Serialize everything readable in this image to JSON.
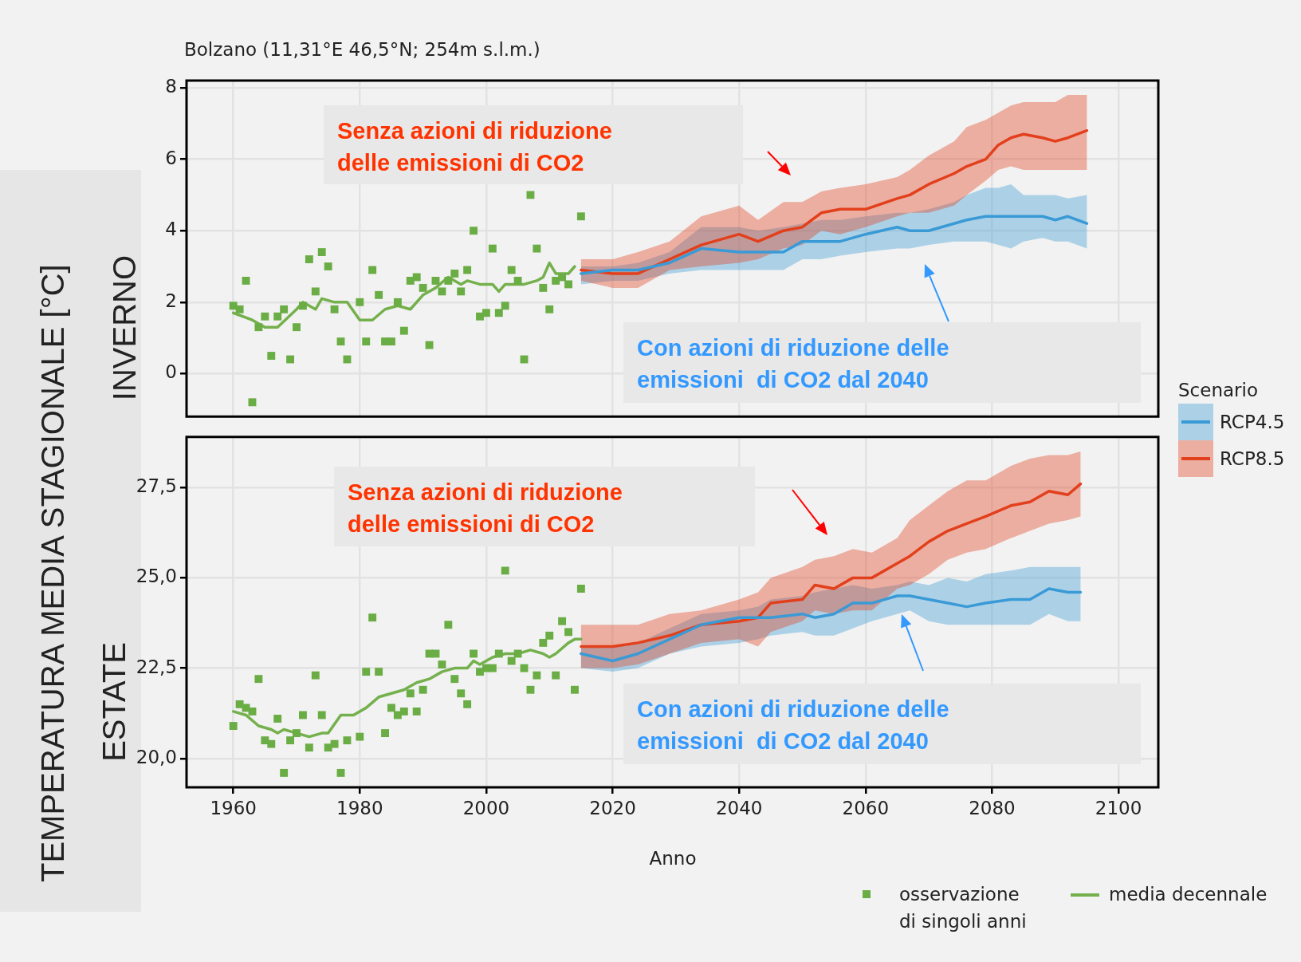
{
  "chart_data": [
    {
      "type": "line",
      "title": "Bolzano (11,31°E 46,5°N; 254m s.l.m.)",
      "subtitle": "INVERNO",
      "ylabel": "TEMPERATURA MEDIA STAGIONALE [°C]",
      "legend_title": "Scenario",
      "legend": "right",
      "grid": true,
      "tick_labels": "y",
      "xlim": [
        1952.6,
        2106.3
      ],
      "xticks": [
        1960,
        1980,
        2000,
        2020,
        2040,
        2060,
        2080,
        2100
      ],
      "ylim": [
        -1.2,
        8.2
      ],
      "yticks": [
        0,
        2,
        4,
        6,
        8
      ],
      "annotations": [
        "Senza azioni di riduzione\ndelle emissioni di CO2",
        "Con azioni di riduzione delle\nemissioni  di CO2 dal 2040"
      ],
      "series": [
        {
          "type": "scatter",
          "marker": "square",
          "color": "#6aad45",
          "x": [
            1960,
            1961,
            1962,
            1963,
            1964,
            1965,
            1966,
            1967,
            1968,
            1969,
            1970,
            1971,
            1972,
            1973,
            1974,
            1975,
            1976,
            1977,
            1978,
            1980,
            1981,
            1982,
            1983,
            1984,
            1985,
            1986,
            1987,
            1988,
            1989,
            1990,
            1991,
            1992,
            1993,
            1994,
            1995,
            1996,
            1997,
            1998,
            1999,
            2000,
            2001,
            2002,
            2003,
            2004,
            2005,
            2006,
            2007,
            2008,
            2009,
            2010,
            2011,
            2012,
            2013,
            2015
          ],
          "values": [
            1.9,
            1.8,
            2.6,
            -0.8,
            1.3,
            1.6,
            0.5,
            1.6,
            1.8,
            0.4,
            1.3,
            1.9,
            3.2,
            2.3,
            3.4,
            3.0,
            1.8,
            0.9,
            0.4,
            2.0,
            0.9,
            2.9,
            2.2,
            0.9,
            0.9,
            2.0,
            1.2,
            2.6,
            2.7,
            2.4,
            0.8,
            2.6,
            2.3,
            2.6,
            2.8,
            2.3,
            2.9,
            4.0,
            1.6,
            1.7,
            3.5,
            1.7,
            1.9,
            2.9,
            2.6,
            0.4,
            5.0,
            3.5,
            2.4,
            1.8,
            2.6,
            2.7,
            2.5,
            4.4
          ]
        },
        {
          "type": "line",
          "color": "#74b04c",
          "x": [
            1960,
            1963,
            1965,
            1967,
            1970,
            1971,
            1973,
            1974,
            1976,
            1978,
            1980,
            1982,
            1984,
            1986,
            1988,
            1990,
            1992,
            1994,
            1996,
            1997,
            1999,
            2001,
            2002,
            2003,
            2005,
            2006,
            2008,
            2009,
            2010,
            2011,
            2013,
            2014
          ],
          "values": [
            1.7,
            1.5,
            1.3,
            1.3,
            1.8,
            2.0,
            1.8,
            2.1,
            2.0,
            2.0,
            1.5,
            1.5,
            1.8,
            1.9,
            1.8,
            2.2,
            2.4,
            2.7,
            2.5,
            2.6,
            2.5,
            2.5,
            2.3,
            2.5,
            2.5,
            2.5,
            2.6,
            2.7,
            3.1,
            2.8,
            2.8,
            3.0
          ]
        },
        {
          "type": "line",
          "name": "RCP4.5",
          "color": "#3a9ad6",
          "x": [
            2015,
            2020,
            2024,
            2029,
            2034,
            2040,
            2043,
            2047,
            2050,
            2053,
            2056,
            2060,
            2065,
            2067,
            2070,
            2074,
            2076,
            2079,
            2081,
            2083,
            2085,
            2088,
            2090,
            2092,
            2095
          ],
          "values": [
            2.8,
            2.9,
            2.9,
            3.1,
            3.5,
            3.4,
            3.4,
            3.4,
            3.7,
            3.7,
            3.7,
            3.9,
            4.1,
            4.0,
            4.0,
            4.2,
            4.3,
            4.4,
            4.4,
            4.4,
            4.4,
            4.4,
            4.3,
            4.4,
            4.2
          ],
          "upper": [
            3.0,
            3.0,
            3.1,
            3.4,
            4.1,
            4.1,
            4.0,
            4.1,
            4.2,
            4.3,
            4.3,
            4.4,
            4.5,
            4.5,
            4.6,
            4.8,
            5.0,
            5.2,
            5.2,
            5.3,
            5.0,
            5.0,
            5.0,
            4.9,
            5.0
          ],
          "lower": [
            2.5,
            2.6,
            2.6,
            2.8,
            2.9,
            2.9,
            2.9,
            2.9,
            3.2,
            3.2,
            3.3,
            3.4,
            3.5,
            3.5,
            3.6,
            3.7,
            3.7,
            3.7,
            3.6,
            3.5,
            3.7,
            3.8,
            3.7,
            3.7,
            3.5
          ]
        },
        {
          "type": "line",
          "name": "RCP8.5",
          "color": "#e2401c",
          "x": [
            2015,
            2020,
            2024,
            2029,
            2034,
            2040,
            2043,
            2047,
            2050,
            2053,
            2056,
            2060,
            2065,
            2067,
            2070,
            2074,
            2076,
            2079,
            2081,
            2083,
            2085,
            2088,
            2090,
            2092,
            2095
          ],
          "values": [
            2.9,
            2.8,
            2.8,
            3.2,
            3.6,
            3.9,
            3.7,
            4.0,
            4.1,
            4.5,
            4.6,
            4.6,
            4.9,
            5.0,
            5.3,
            5.6,
            5.8,
            6.0,
            6.4,
            6.6,
            6.7,
            6.6,
            6.5,
            6.6,
            6.8
          ],
          "upper": [
            3.2,
            3.2,
            3.4,
            3.7,
            4.4,
            4.7,
            4.3,
            4.8,
            4.8,
            5.1,
            5.2,
            5.3,
            5.5,
            5.7,
            6.1,
            6.5,
            6.9,
            7.1,
            7.3,
            7.5,
            7.6,
            7.6,
            7.6,
            7.8,
            7.8
          ],
          "lower": [
            2.6,
            2.4,
            2.4,
            2.9,
            3.0,
            3.1,
            3.2,
            3.5,
            3.6,
            4.0,
            3.9,
            4.1,
            4.4,
            4.5,
            4.5,
            4.7,
            5.0,
            5.4,
            5.7,
            5.8,
            5.7,
            5.7,
            5.7,
            5.7,
            5.7
          ]
        }
      ]
    },
    {
      "type": "line",
      "subtitle": "ESTATE",
      "xlabel": "Anno",
      "legend": "bottom",
      "grid": true,
      "xlim": [
        1952.6,
        2106.3
      ],
      "xticks": [
        1960,
        1980,
        2000,
        2020,
        2040,
        2060,
        2080,
        2100
      ],
      "ylim": [
        19.2,
        28.9
      ],
      "yticks": [
        {
          "value": 20,
          "label": "20,0"
        },
        {
          "value": 22.5,
          "label": "22,5"
        },
        {
          "value": 25,
          "label": "25,0"
        },
        {
          "value": 27.5,
          "label": "27,5"
        }
      ],
      "annotations": [
        "Senza azioni di riduzione\ndelle emissioni di CO2",
        "Con azioni di riduzione delle\nemissioni  di CO2 dal 2040"
      ],
      "series": [
        {
          "type": "scatter",
          "name": "osservazione di singoli anni",
          "marker": "square",
          "color": "#6aad45",
          "x": [
            1960,
            1961,
            1962,
            1963,
            1964,
            1965,
            1966,
            1967,
            1968,
            1969,
            1970,
            1971,
            1972,
            1973,
            1974,
            1975,
            1976,
            1977,
            1978,
            1980,
            1981,
            1982,
            1983,
            1984,
            1985,
            1986,
            1987,
            1988,
            1989,
            1990,
            1991,
            1992,
            1993,
            1994,
            1995,
            1996,
            1997,
            1998,
            1999,
            2000,
            2001,
            2002,
            2003,
            2004,
            2005,
            2006,
            2007,
            2008,
            2009,
            2010,
            2011,
            2012,
            2013,
            2014,
            2015
          ],
          "values": [
            20.9,
            21.5,
            21.4,
            21.3,
            22.2,
            20.5,
            20.4,
            21.1,
            19.6,
            20.5,
            20.7,
            21.2,
            20.3,
            22.3,
            21.2,
            20.3,
            20.4,
            19.6,
            20.5,
            20.6,
            22.4,
            23.9,
            22.4,
            20.7,
            21.4,
            21.2,
            21.3,
            21.8,
            21.3,
            21.9,
            22.9,
            22.9,
            22.6,
            23.7,
            22.2,
            21.8,
            21.5,
            22.9,
            22.4,
            22.5,
            22.5,
            22.9,
            25.2,
            22.7,
            22.9,
            22.5,
            21.9,
            22.3,
            23.2,
            23.4,
            22.3,
            23.8,
            23.5,
            21.9,
            24.7
          ]
        },
        {
          "type": "line",
          "name": "media decennale",
          "color": "#74b04c",
          "x": [
            1960,
            1962,
            1964,
            1966,
            1967,
            1968,
            1970,
            1972,
            1974,
            1975,
            1977,
            1979,
            1981,
            1983,
            1985,
            1987,
            1989,
            1991,
            1993,
            1995,
            1997,
            1998,
            1999,
            2001,
            2003,
            2005,
            2007,
            2009,
            2010,
            2011,
            2013,
            2014,
            2015
          ],
          "values": [
            21.3,
            21.2,
            20.9,
            20.8,
            20.7,
            20.8,
            20.7,
            20.6,
            20.7,
            20.7,
            21.2,
            21.2,
            21.4,
            21.7,
            21.8,
            21.9,
            22.1,
            22.2,
            22.4,
            22.5,
            22.5,
            22.7,
            22.6,
            22.8,
            22.9,
            22.9,
            23.0,
            22.9,
            22.8,
            22.9,
            23.2,
            23.3,
            23.3
          ]
        },
        {
          "type": "line",
          "color": "#3a9ad6",
          "x": [
            2015,
            2020,
            2024,
            2029,
            2034,
            2040,
            2043,
            2045,
            2050,
            2052,
            2055,
            2058,
            2061,
            2065,
            2067,
            2070,
            2073,
            2076,
            2079,
            2083,
            2086,
            2089,
            2092,
            2094
          ],
          "values": [
            22.9,
            22.7,
            22.9,
            23.3,
            23.7,
            23.9,
            23.9,
            23.9,
            24.0,
            23.9,
            24.0,
            24.3,
            24.3,
            24.5,
            24.5,
            24.4,
            24.3,
            24.2,
            24.3,
            24.4,
            24.4,
            24.7,
            24.6,
            24.6
          ],
          "upper": [
            23.1,
            23.1,
            23.2,
            23.6,
            24.0,
            24.1,
            24.2,
            24.4,
            24.5,
            24.6,
            24.7,
            24.8,
            24.7,
            24.8,
            24.9,
            24.8,
            25.0,
            24.9,
            25.1,
            25.2,
            25.3,
            25.3,
            25.3,
            25.3
          ],
          "lower": [
            22.5,
            22.4,
            22.5,
            22.9,
            23.1,
            23.2,
            23.3,
            23.4,
            23.5,
            23.4,
            23.4,
            23.6,
            23.8,
            24.0,
            24.1,
            23.8,
            23.7,
            23.7,
            23.7,
            23.7,
            23.7,
            24.0,
            23.8,
            23.8
          ]
        },
        {
          "type": "line",
          "color": "#e2401c",
          "x": [
            2015,
            2020,
            2024,
            2029,
            2034,
            2040,
            2043,
            2045,
            2050,
            2052,
            2055,
            2058,
            2061,
            2065,
            2067,
            2070,
            2073,
            2076,
            2079,
            2083,
            2086,
            2089,
            2092,
            2094
          ],
          "values": [
            23.1,
            23.1,
            23.2,
            23.4,
            23.7,
            23.8,
            23.9,
            24.3,
            24.4,
            24.8,
            24.7,
            25.0,
            25.0,
            25.4,
            25.6,
            26.0,
            26.3,
            26.5,
            26.7,
            27.0,
            27.1,
            27.4,
            27.3,
            27.6
          ],
          "upper": [
            23.7,
            23.7,
            23.7,
            24.0,
            24.1,
            24.4,
            24.6,
            25.0,
            25.3,
            25.5,
            25.6,
            25.8,
            25.7,
            26.1,
            26.6,
            27.0,
            27.4,
            27.7,
            27.7,
            28.1,
            28.3,
            28.4,
            28.4,
            28.5
          ],
          "lower": [
            22.5,
            22.5,
            22.6,
            22.9,
            23.2,
            23.3,
            23.1,
            23.5,
            23.8,
            24.1,
            24.0,
            24.1,
            24.1,
            24.7,
            24.8,
            25.1,
            25.5,
            25.7,
            25.8,
            26.1,
            26.3,
            26.5,
            26.6,
            26.7
          ]
        }
      ]
    }
  ]
}
